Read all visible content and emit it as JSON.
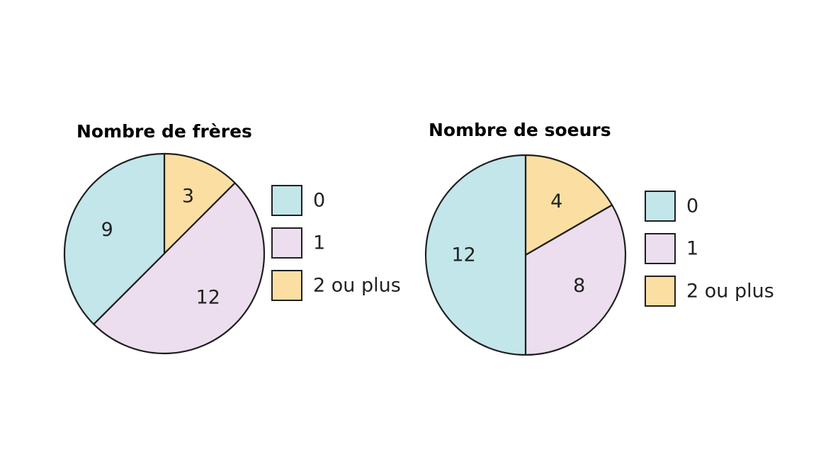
{
  "colors": {
    "zero": "#c2e6ea",
    "one": "#ecdeee",
    "two_plus": "#fbdfa2",
    "stroke": "#1f1f1f"
  },
  "chart_data": [
    {
      "type": "pie",
      "title": "Nombre de frères",
      "slices": [
        {
          "label": "2 ou plus",
          "value": 3,
          "color": "#fbdfa2"
        },
        {
          "label": "1",
          "value": 12,
          "color": "#ecdeee"
        },
        {
          "label": "0",
          "value": 9,
          "color": "#c2e6ea"
        }
      ],
      "legend": [
        {
          "label": "0",
          "color": "#c2e6ea"
        },
        {
          "label": "1",
          "color": "#ecdeee"
        },
        {
          "label": "2 ou plus",
          "color": "#fbdfa2"
        }
      ],
      "start_angle": "top, clockwise",
      "legend_position": "right"
    },
    {
      "type": "pie",
      "title": "Nombre de soeurs",
      "slices": [
        {
          "label": "2 ou plus",
          "value": 4,
          "color": "#fbdfa2"
        },
        {
          "label": "1",
          "value": 8,
          "color": "#ecdeee"
        },
        {
          "label": "0",
          "value": 12,
          "color": "#c2e6ea"
        }
      ],
      "legend": [
        {
          "label": "0",
          "color": "#c2e6ea"
        },
        {
          "label": "1",
          "color": "#ecdeee"
        },
        {
          "label": "2 ou plus",
          "color": "#fbdfa2"
        }
      ],
      "start_angle": "top, clockwise",
      "legend_position": "right"
    }
  ]
}
